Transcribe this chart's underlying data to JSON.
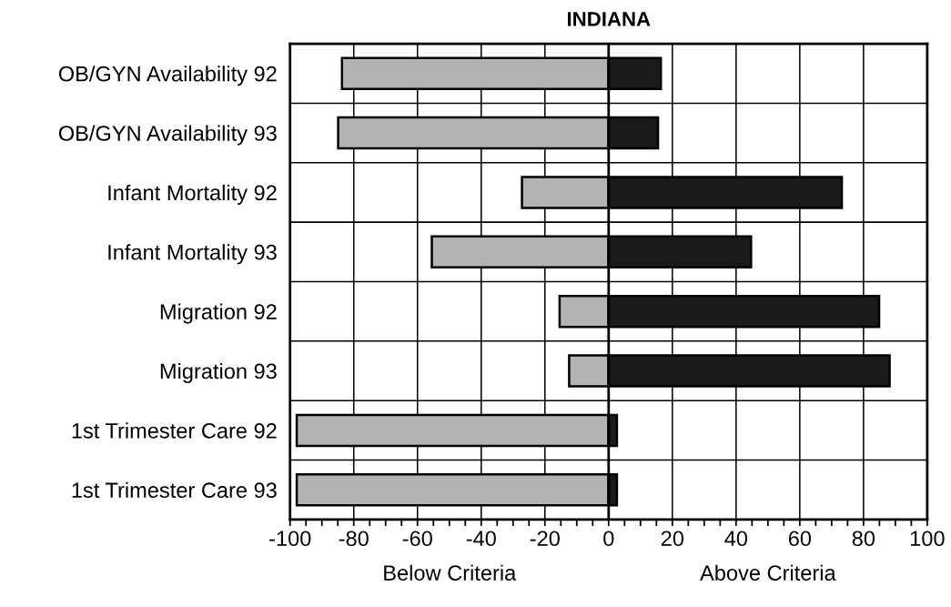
{
  "chart_data": {
    "type": "bar",
    "orientation": "horizontal",
    "title": "INDIANA",
    "categories": [
      "OB/GYN Availability 92",
      "OB/GYN Availability 93",
      "Infant Mortality 92",
      "Infant Mortality 93",
      "Migration 92",
      "Migration 93",
      "1st Trimester Care 92",
      "1st Trimester Care 93"
    ],
    "series": [
      {
        "color": "#b3b3b3",
        "values": [
          -83.7,
          -84.9,
          -27.2,
          -55.5,
          -15.4,
          -12.4,
          -97.9,
          -97.9
        ]
      },
      {
        "color": "#1a1a1a",
        "values": [
          16.4,
          15.5,
          73.2,
          44.7,
          84.9,
          88.2,
          2.6,
          2.6
        ]
      }
    ],
    "xlim": [
      -100,
      100
    ],
    "xticks": [
      -100,
      {
        "value": -95,
        "label": null
      },
      {
        "value": -90,
        "label": null
      },
      {
        "value": -85,
        "label": null
      },
      -80,
      {
        "value": -75,
        "label": null
      },
      {
        "value": -70,
        "label": null
      },
      {
        "value": -65,
        "label": null
      },
      -60,
      {
        "value": -55,
        "label": null
      },
      {
        "value": -50,
        "label": null
      },
      {
        "value": -45,
        "label": null
      },
      -40,
      {
        "value": -35,
        "label": null
      },
      {
        "value": -30,
        "label": null
      },
      {
        "value": -25,
        "label": null
      },
      -20,
      {
        "value": -15,
        "label": null
      },
      {
        "value": -10,
        "label": null
      },
      {
        "value": -5,
        "label": null
      },
      0,
      {
        "value": 5,
        "label": null
      },
      {
        "value": 10,
        "label": null
      },
      {
        "value": 15,
        "label": null
      },
      20,
      {
        "value": 25,
        "label": null
      },
      {
        "value": 30,
        "label": null
      },
      {
        "value": 35,
        "label": null
      },
      40,
      {
        "value": 45,
        "label": null
      },
      {
        "value": 50,
        "label": null
      },
      {
        "value": 55,
        "label": null
      },
      60,
      {
        "value": 65,
        "label": null
      },
      {
        "value": 70,
        "label": null
      },
      {
        "value": 75,
        "label": null
      },
      80,
      {
        "value": 85,
        "label": null
      },
      {
        "value": 90,
        "label": null
      },
      {
        "value": 95,
        "label": null
      },
      100
    ],
    "ref_lines": [
      {
        "axis": "x",
        "value": 0,
        "label": null,
        "color": "#000000"
      }
    ],
    "grid": true,
    "legend": false,
    "stacked": true,
    "annotations": [
      "Below Criteria",
      "Above Criteria"
    ]
  }
}
